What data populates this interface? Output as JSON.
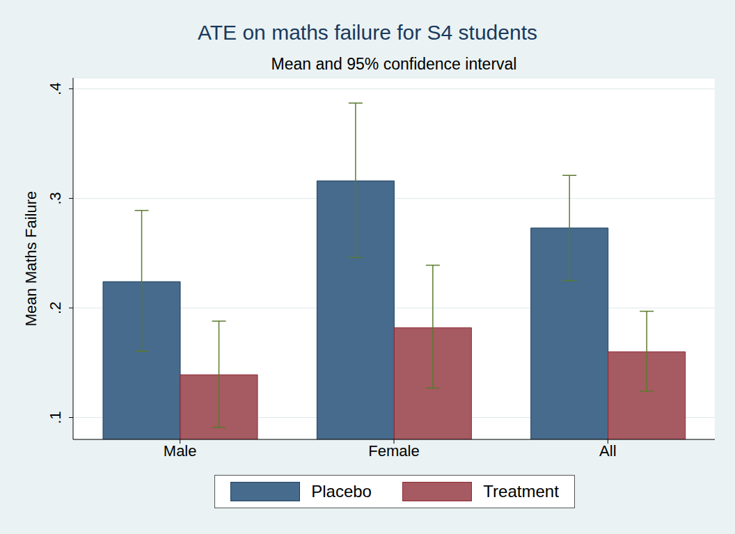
{
  "chart_data": {
    "type": "bar",
    "title": "ATE on maths failure for S4 students",
    "subtitle": "Mean and 95% confidence interval",
    "y_label": "Mean Maths Failure",
    "categories": [
      "Male",
      "Female",
      "All"
    ],
    "series": [
      {
        "name": "Placebo",
        "color": "#476b8d",
        "values": [
          0.224,
          0.316,
          0.273
        ],
        "ci_low": [
          0.1605,
          0.246,
          0.225
        ],
        "ci_high": [
          0.289,
          0.387,
          0.321
        ]
      },
      {
        "name": "Treatment",
        "color": "#a65a61",
        "values": [
          0.139,
          0.182,
          0.16
        ],
        "ci_low": [
          0.091,
          0.127,
          0.124
        ],
        "ci_high": [
          0.188,
          0.239,
          0.197
        ]
      }
    ],
    "ylim": [
      0.08,
      0.41
    ],
    "yticks": [
      {
        "value": 0.1,
        "label": ".1"
      },
      {
        "value": 0.2,
        "label": ".2"
      },
      {
        "value": 0.3,
        "label": ".3"
      },
      {
        "value": 0.4,
        "label": ".4"
      }
    ],
    "grid": true,
    "legend": "bottom"
  }
}
